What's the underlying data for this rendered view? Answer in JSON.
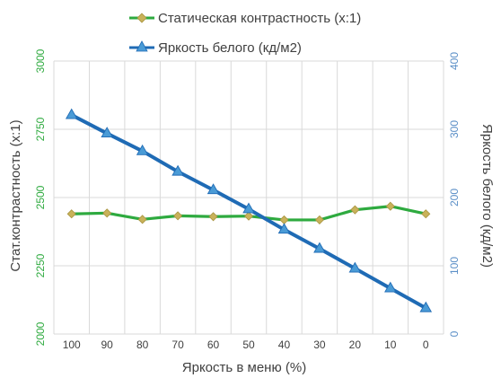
{
  "chart_data": {
    "type": "line",
    "x": [
      100,
      90,
      80,
      70,
      60,
      50,
      40,
      30,
      20,
      10,
      0
    ],
    "xlabel": "Яркость в меню (%)",
    "ylabel_left": "Стат.контрастность  (x:1)",
    "ylabel_right": "Яркость белого (кд/м2)",
    "ylim_left": [
      2000,
      3000
    ],
    "yticks_left": [
      "2000",
      "2250",
      "2500",
      "2750",
      "3000"
    ],
    "ylim_right": [
      0,
      400
    ],
    "yticks_right": [
      "0",
      "100",
      "200",
      "300",
      "400"
    ],
    "xtick_labels": [
      "100",
      "90",
      "80",
      "70",
      "60",
      "50",
      "40",
      "30",
      "20",
      "10",
      "0"
    ],
    "legend_position": "top",
    "grid": true,
    "series": [
      {
        "name": "Статическая контрастность  (x:1)",
        "axis": "left",
        "color": "#2eaa3f",
        "marker": "diamond",
        "marker_color": "#c9b25a",
        "values": [
          2440,
          2443,
          2420,
          2433,
          2430,
          2432,
          2418,
          2418,
          2455,
          2468,
          2440
        ]
      },
      {
        "name": "Яркость белого (кд/м2)",
        "axis": "right",
        "color": "#1f6bb5",
        "marker": "triangle",
        "marker_color": "#4a9bd6",
        "values": [
          321,
          294,
          268,
          238,
          211,
          183,
          153,
          125,
          96,
          67,
          38
        ]
      }
    ],
    "axis_colors": {
      "left": "#2eaa3f",
      "right": "#5b8fc7",
      "text": "#404040",
      "grid": "#d9d9d9"
    }
  }
}
